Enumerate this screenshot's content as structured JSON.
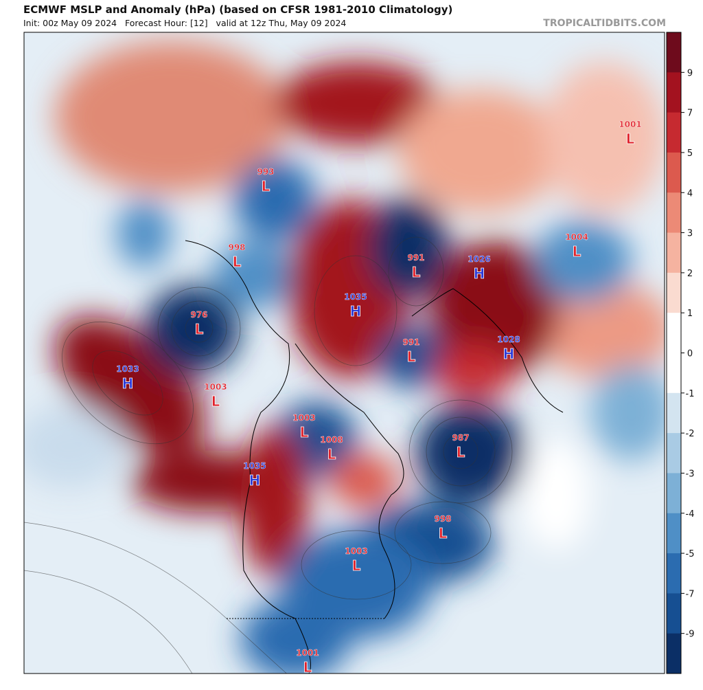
{
  "header": {
    "title": "ECMWF MSLP and Anomaly (hPa) (based on CFSR 1981-2010 Climatology)",
    "subtitle": "Init: 00z May 09 2024   Forecast Hour: [12]   valid at 12z Thu, May 09 2024",
    "brand": "TROPICALTIDBITS.COM"
  },
  "colorbar": {
    "ticks": [
      9,
      7,
      5,
      4,
      3,
      2,
      1,
      0,
      -1,
      -2,
      -3,
      -4,
      -5,
      -7,
      -9
    ],
    "colors": [
      "#6e0b1c",
      "#a3121f",
      "#c62a30",
      "#dc5a4e",
      "#ec8a76",
      "#f5b3a0",
      "#fadbd0",
      "#ffffff",
      "#ffffff",
      "#d3e4f0",
      "#a9cbe4",
      "#7db0d6",
      "#4f8fc6",
      "#2b6cb0",
      "#164f92",
      "#0b2f66"
    ]
  },
  "centers": [
    {
      "letter": "L",
      "pressure": 993
    },
    {
      "letter": "L",
      "pressure": 998
    },
    {
      "letter": "L",
      "pressure": 976
    },
    {
      "letter": "H",
      "pressure": 1033
    },
    {
      "letter": "L",
      "pressure": 1003
    },
    {
      "letter": "H",
      "pressure": 1035
    },
    {
      "letter": "L",
      "pressure": 1003
    },
    {
      "letter": "L",
      "pressure": 1008
    },
    {
      "letter": "L",
      "pressure": 987
    },
    {
      "letter": "L",
      "pressure": 998
    },
    {
      "letter": "L",
      "pressure": 1003
    },
    {
      "letter": "L",
      "pressure": 1001
    },
    {
      "letter": "H",
      "pressure": 1035
    },
    {
      "letter": "L",
      "pressure": 991
    },
    {
      "letter": "L",
      "pressure": 991
    },
    {
      "letter": "H",
      "pressure": 1026
    },
    {
      "letter": "H",
      "pressure": 1028
    },
    {
      "letter": "L",
      "pressure": 1004
    },
    {
      "letter": "L",
      "pressure": 1001
    }
  ]
}
